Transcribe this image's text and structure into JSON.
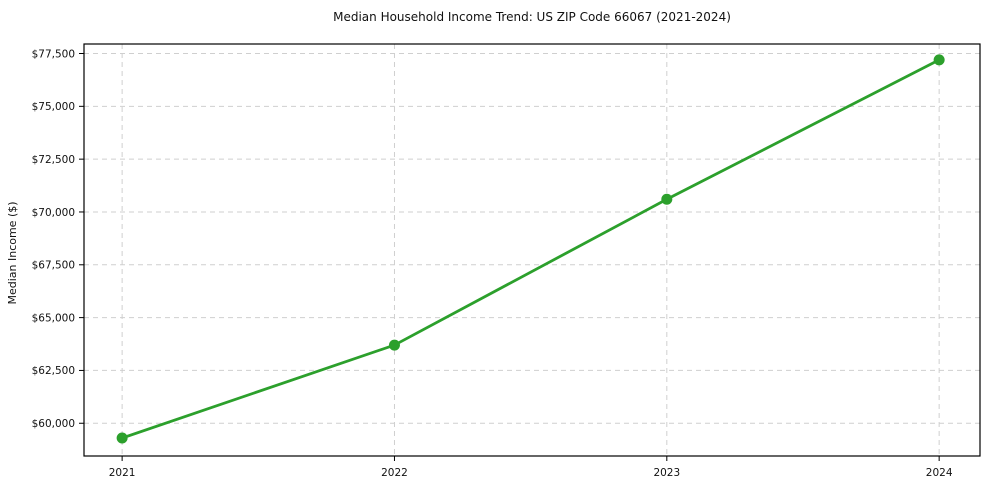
{
  "chart_data": {
    "type": "line",
    "title": "Median Household Income Trend: US ZIP Code 66067 (2021-2024)",
    "xlabel": "",
    "ylabel": "Median Income ($)",
    "x": [
      2021,
      2022,
      2023,
      2024
    ],
    "xtick_labels": [
      "2021",
      "2022",
      "2023",
      "2024"
    ],
    "values": [
      59300,
      63700,
      70600,
      77200
    ],
    "yticks": [
      60000,
      62500,
      65000,
      67500,
      70000,
      72500,
      75000,
      77500
    ],
    "ytick_labels": [
      "$60,000",
      "$62,500",
      "$65,000",
      "$67,500",
      "$70,000",
      "$72,500",
      "$75,000",
      "$77,500"
    ],
    "xlim": [
      2020.86,
      2024.15
    ],
    "ylim": [
      58450,
      77950
    ],
    "grid": true,
    "grid_style": "dashed",
    "legend_position": "none",
    "colors": {
      "line": "#2ca02c",
      "marker": "#2ca02c",
      "grid": "#cfcfcf",
      "spine": "#000000",
      "text": "#111111",
      "background": "#ffffff"
    }
  }
}
